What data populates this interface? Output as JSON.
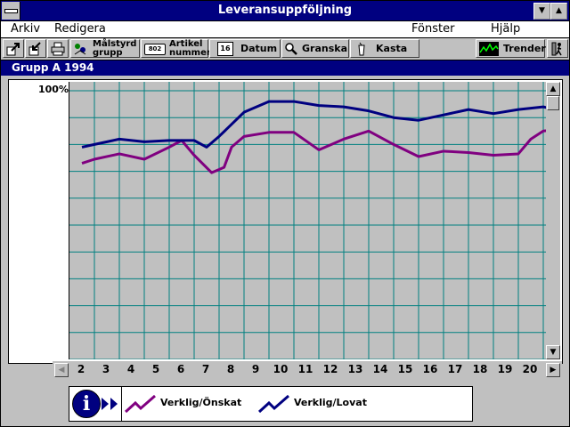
{
  "window": {
    "title": "Leveransuppföljning"
  },
  "menu": {
    "arkiv": "Arkiv",
    "redigera": "Redigera",
    "fonster": "Fönster",
    "hjalp": "Hjälp"
  },
  "toolbar": {
    "malstyrd_line1": "Målstyrd",
    "malstyrd_line2": "grupp",
    "artikel_line1": "Artikel",
    "artikel_line2": "nummer",
    "artikel_icon_text": "802",
    "datum_icon_text": "16",
    "datum": "Datum",
    "granska": "Granska",
    "kasta": "Kasta",
    "trender": "Trender"
  },
  "group": {
    "title": "Grupp A 1994"
  },
  "chart_data": {
    "type": "line",
    "ylabel_top": "100%",
    "x": [
      "2",
      "3",
      "4",
      "5",
      "6",
      "7",
      "8",
      "9",
      "10",
      "11",
      "12",
      "13",
      "14",
      "15",
      "16",
      "17",
      "18",
      "19",
      "20"
    ],
    "series": [
      {
        "name": "Verklig/Önskat",
        "color": "#800080",
        "points": [
          [
            1.5,
            73
          ],
          [
            2,
            74.5
          ],
          [
            3,
            76.5
          ],
          [
            4,
            74.5
          ],
          [
            5,
            79
          ],
          [
            5.5,
            81.5
          ],
          [
            6,
            76
          ],
          [
            6.7,
            69.5
          ],
          [
            7.2,
            71.5
          ],
          [
            7.5,
            79
          ],
          [
            8,
            83
          ],
          [
            9,
            84.5
          ],
          [
            10,
            84.5
          ],
          [
            11,
            78
          ],
          [
            12,
            82
          ],
          [
            13,
            85
          ],
          [
            14,
            80
          ],
          [
            15,
            75.5
          ],
          [
            16,
            77.5
          ],
          [
            17,
            77
          ],
          [
            18,
            76
          ],
          [
            19,
            76.5
          ],
          [
            19.5,
            82
          ],
          [
            20,
            85
          ],
          [
            20.5,
            85.5
          ],
          [
            21,
            83.5
          ]
        ]
      },
      {
        "name": "Verklig/Lovat",
        "color": "#000080",
        "points": [
          [
            1.5,
            79
          ],
          [
            2,
            80
          ],
          [
            3,
            82
          ],
          [
            4,
            81
          ],
          [
            5,
            81.5
          ],
          [
            5.5,
            81.5
          ],
          [
            6,
            81.5
          ],
          [
            6.5,
            79
          ],
          [
            7,
            83
          ],
          [
            8,
            92
          ],
          [
            9,
            96
          ],
          [
            10,
            96
          ],
          [
            11,
            94.5
          ],
          [
            12,
            94
          ],
          [
            13,
            92.5
          ],
          [
            14,
            90
          ],
          [
            15,
            89
          ],
          [
            16,
            91
          ],
          [
            17,
            93
          ],
          [
            18,
            91.5
          ],
          [
            19,
            93
          ],
          [
            20,
            94
          ],
          [
            20.5,
            93
          ],
          [
            21,
            91
          ]
        ]
      }
    ],
    "ylim": [
      0,
      100
    ],
    "grid": true,
    "legend_position": "bottom"
  }
}
